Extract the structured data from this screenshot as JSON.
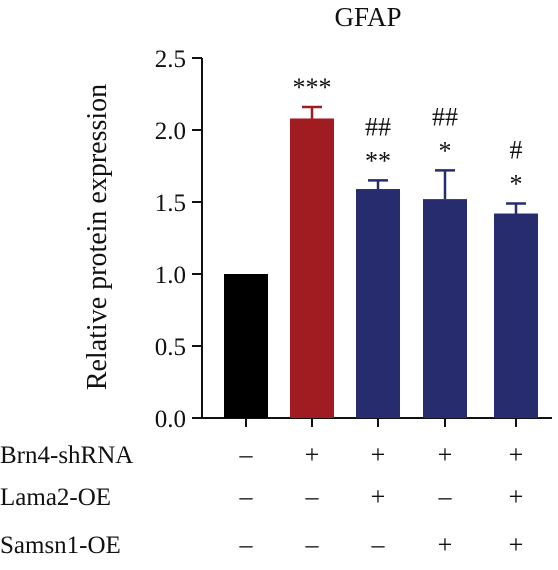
{
  "chart_data": {
    "type": "bar",
    "title": "GFAP",
    "ylabel": "Relative protein expression",
    "xlabel": "",
    "ylim": [
      0,
      2.5
    ],
    "yticks": [
      "0.0",
      "0.5",
      "1.0",
      "1.5",
      "2.0",
      "2.5"
    ],
    "grid": false,
    "bars": [
      {
        "value": 1.0,
        "error": 0.0,
        "color": "#000000",
        "sig_lines": []
      },
      {
        "value": 2.08,
        "error": 0.08,
        "color": "#A11C20",
        "sig_lines": [
          "***"
        ]
      },
      {
        "value": 1.59,
        "error": 0.06,
        "color": "#272C6F",
        "sig_lines": [
          "##",
          "**"
        ]
      },
      {
        "value": 1.52,
        "error": 0.2,
        "color": "#272C6F",
        "sig_lines": [
          "##",
          "*"
        ]
      },
      {
        "value": 1.42,
        "error": 0.07,
        "color": "#272C6F",
        "sig_lines": [
          "#",
          "*"
        ]
      }
    ],
    "conditions": [
      {
        "label": "Brn4-shRNA",
        "signs": [
          "–",
          "+",
          "+",
          "+",
          "+"
        ]
      },
      {
        "label": "Lama2-OE",
        "signs": [
          "–",
          "–",
          "+",
          "–",
          "+"
        ]
      },
      {
        "label": "Samsn1-OE",
        "signs": [
          "–",
          "–",
          "–",
          "+",
          "+"
        ]
      }
    ]
  }
}
